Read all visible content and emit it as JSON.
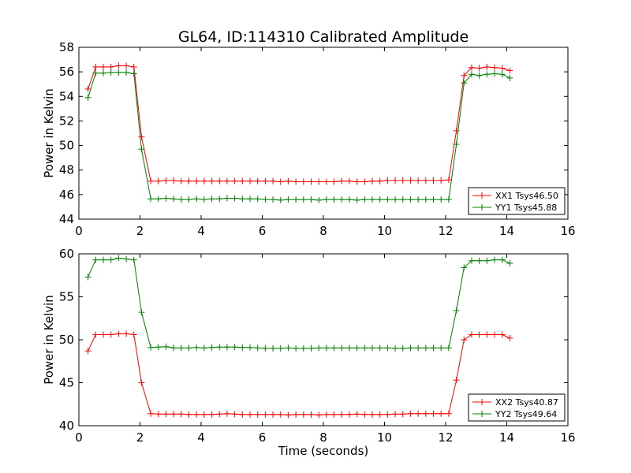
{
  "title": "GL64, ID:114310 Calibrated Amplitude",
  "colors": {
    "red": "#ff0000",
    "green": "#008000"
  },
  "chart_data": [
    {
      "type": "line",
      "title": "GL64, ID:114310 Calibrated Amplitude",
      "xlabel": "",
      "ylabel": "Power in Kelvin",
      "xlim": [
        0,
        16
      ],
      "ylim": [
        44,
        58
      ],
      "xticks": [
        0,
        2,
        4,
        6,
        8,
        10,
        12,
        14,
        16
      ],
      "yticks": [
        44,
        46,
        48,
        50,
        52,
        54,
        56,
        58
      ],
      "grid": false,
      "legend": "lower-right",
      "x": [
        0.3,
        0.55,
        0.8,
        1.05,
        1.3,
        1.55,
        1.8,
        2.05,
        2.35,
        2.6,
        2.85,
        3.1,
        3.35,
        3.6,
        3.85,
        4.1,
        4.35,
        4.6,
        4.85,
        5.1,
        5.35,
        5.6,
        5.85,
        6.1,
        6.35,
        6.6,
        6.85,
        7.1,
        7.35,
        7.6,
        7.85,
        8.1,
        8.35,
        8.6,
        8.85,
        9.1,
        9.35,
        9.6,
        9.85,
        10.1,
        10.35,
        10.6,
        10.85,
        11.1,
        11.35,
        11.6,
        11.85,
        12.1,
        12.35,
        12.6,
        12.85,
        13.1,
        13.35,
        13.6,
        13.85,
        14.1
      ],
      "series": [
        {
          "name": "XX1 Tsys46.50",
          "color": "#ff0000",
          "values": [
            54.6,
            56.4,
            56.4,
            56.4,
            56.5,
            56.5,
            56.4,
            50.7,
            47.1,
            47.1,
            47.15,
            47.15,
            47.1,
            47.1,
            47.1,
            47.1,
            47.1,
            47.1,
            47.1,
            47.1,
            47.1,
            47.1,
            47.1,
            47.1,
            47.1,
            47.05,
            47.1,
            47.05,
            47.05,
            47.05,
            47.05,
            47.05,
            47.05,
            47.1,
            47.1,
            47.05,
            47.05,
            47.1,
            47.1,
            47.15,
            47.15,
            47.15,
            47.15,
            47.15,
            47.15,
            47.15,
            47.15,
            47.2,
            51.2,
            55.7,
            56.35,
            56.3,
            56.4,
            56.35,
            56.3,
            56.1
          ]
        },
        {
          "name": "YY1 Tsys45.88",
          "color": "#008000",
          "values": [
            53.9,
            55.9,
            55.9,
            55.95,
            55.95,
            55.95,
            55.85,
            49.7,
            45.65,
            45.65,
            45.7,
            45.65,
            45.6,
            45.6,
            45.65,
            45.6,
            45.65,
            45.65,
            45.7,
            45.7,
            45.65,
            45.65,
            45.65,
            45.6,
            45.6,
            45.55,
            45.6,
            45.6,
            45.6,
            45.6,
            45.55,
            45.6,
            45.6,
            45.6,
            45.6,
            45.55,
            45.6,
            45.6,
            45.6,
            45.6,
            45.6,
            45.6,
            45.6,
            45.6,
            45.6,
            45.6,
            45.6,
            45.6,
            50.1,
            55.1,
            55.8,
            55.7,
            55.8,
            55.85,
            55.8,
            55.5
          ]
        }
      ]
    },
    {
      "type": "line",
      "title": "",
      "xlabel": "Time (seconds)",
      "ylabel": "Power in Kelvin",
      "xlim": [
        0,
        16
      ],
      "ylim": [
        40,
        60
      ],
      "xticks": [
        0,
        2,
        4,
        6,
        8,
        10,
        12,
        14,
        16
      ],
      "yticks": [
        40,
        45,
        50,
        55,
        60
      ],
      "grid": false,
      "legend": "lower-right",
      "x": [
        0.3,
        0.55,
        0.8,
        1.05,
        1.3,
        1.55,
        1.8,
        2.05,
        2.35,
        2.6,
        2.85,
        3.1,
        3.35,
        3.6,
        3.85,
        4.1,
        4.35,
        4.6,
        4.85,
        5.1,
        5.35,
        5.6,
        5.85,
        6.1,
        6.35,
        6.6,
        6.85,
        7.1,
        7.35,
        7.6,
        7.85,
        8.1,
        8.35,
        8.6,
        8.85,
        9.1,
        9.35,
        9.6,
        9.85,
        10.1,
        10.35,
        10.6,
        10.85,
        11.1,
        11.35,
        11.6,
        11.85,
        12.1,
        12.35,
        12.6,
        12.85,
        13.1,
        13.35,
        13.6,
        13.85,
        14.1
      ],
      "series": [
        {
          "name": "XX2 Tsys40.87",
          "color": "#ff0000",
          "values": [
            48.7,
            50.6,
            50.6,
            50.6,
            50.7,
            50.7,
            50.6,
            45.0,
            41.4,
            41.35,
            41.35,
            41.35,
            41.35,
            41.3,
            41.3,
            41.3,
            41.3,
            41.35,
            41.4,
            41.35,
            41.3,
            41.3,
            41.3,
            41.3,
            41.3,
            41.3,
            41.25,
            41.3,
            41.3,
            41.3,
            41.25,
            41.3,
            41.3,
            41.3,
            41.3,
            41.35,
            41.3,
            41.3,
            41.3,
            41.3,
            41.35,
            41.35,
            41.4,
            41.4,
            41.4,
            41.4,
            41.4,
            41.4,
            45.3,
            50.0,
            50.6,
            50.6,
            50.6,
            50.6,
            50.6,
            50.2
          ]
        },
        {
          "name": "YY2 Tsys49.64",
          "color": "#008000",
          "values": [
            57.3,
            59.3,
            59.3,
            59.3,
            59.5,
            59.4,
            59.3,
            53.2,
            49.1,
            49.15,
            49.2,
            49.05,
            49.05,
            49.05,
            49.1,
            49.05,
            49.1,
            49.15,
            49.15,
            49.15,
            49.1,
            49.1,
            49.05,
            49.0,
            49.0,
            49.0,
            49.05,
            49.0,
            49.0,
            49.0,
            49.05,
            49.05,
            49.05,
            49.05,
            49.05,
            49.05,
            49.05,
            49.05,
            49.05,
            49.05,
            49.0,
            49.0,
            49.05,
            49.05,
            49.05,
            49.05,
            49.05,
            49.05,
            53.4,
            58.4,
            59.2,
            59.2,
            59.2,
            59.3,
            59.3,
            58.9
          ]
        }
      ]
    }
  ]
}
